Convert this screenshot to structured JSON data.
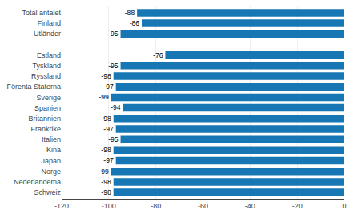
{
  "chart_data": {
    "type": "bar",
    "orientation": "horizontal",
    "categories": [
      "Schweiz",
      "Nederländema",
      "Norge",
      "Japan",
      "Kina",
      "Italien",
      "Frankrike",
      "Britannien",
      "Spanien",
      "Sverige",
      "Förenta Staterna",
      "Ryssland",
      "Tyskland",
      "Estland",
      null,
      "Utländer",
      "Finland",
      "Total antalet"
    ],
    "values": [
      -98,
      -98,
      -99,
      -97,
      -98,
      -95,
      -97,
      -98,
      -94,
      -99,
      -97,
      -98,
      -95,
      -76,
      null,
      -95,
      -86,
      -88
    ],
    "color": "#1777b4",
    "xlim": [
      -120,
      0
    ],
    "xticks": [
      -120,
      -100,
      -80,
      -60,
      -40,
      -20,
      0
    ],
    "grid": true,
    "data_labels": true
  }
}
